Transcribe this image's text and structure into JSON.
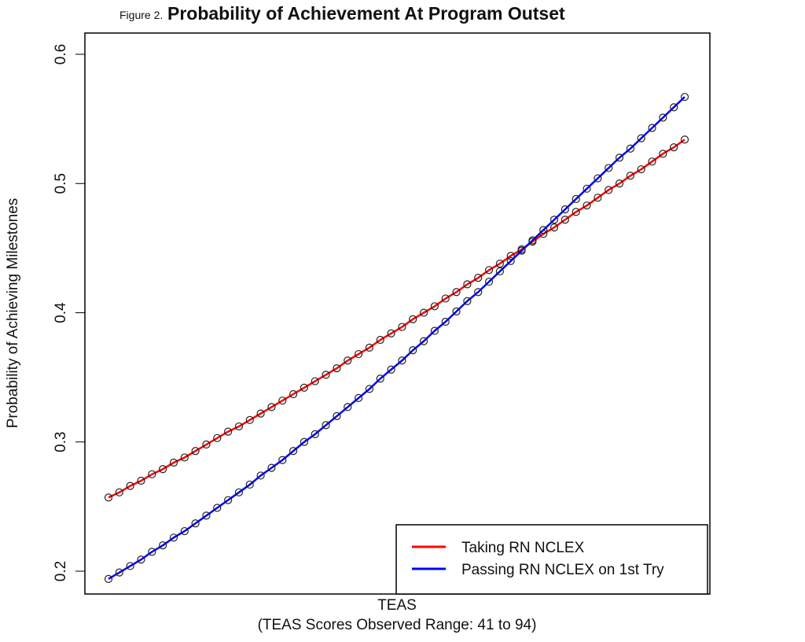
{
  "chart_data": {
    "type": "line",
    "figure_label": "Figure 2.",
    "title": "Probability of Achievement At Program Outset",
    "xlabel": "TEAS",
    "xlabel_sub": "(TEAS Scores Observed Range: 41 to 94)",
    "ylabel": "Probability of Achieving Milestones",
    "ylim": [
      0.18,
      0.62
    ],
    "yticks": [
      "0.2",
      "0.3",
      "0.4",
      "0.5",
      "0.6"
    ],
    "ytick_values": [
      0.2,
      0.3,
      0.4,
      0.5,
      0.6
    ],
    "x_range": [
      41,
      94
    ],
    "legend_position": "bottom-right",
    "markers": "open circles",
    "series": [
      {
        "name": "Taking RN NCLEX",
        "color": "#ff0000",
        "values": [
          0.257,
          0.261,
          0.266,
          0.27,
          0.275,
          0.279,
          0.284,
          0.288,
          0.293,
          0.298,
          0.303,
          0.308,
          0.312,
          0.317,
          0.322,
          0.327,
          0.332,
          0.337,
          0.342,
          0.347,
          0.352,
          0.357,
          0.363,
          0.368,
          0.373,
          0.379,
          0.384,
          0.389,
          0.395,
          0.4,
          0.405,
          0.411,
          0.416,
          0.422,
          0.427,
          0.433,
          0.438,
          0.444,
          0.449,
          0.455,
          0.461,
          0.466,
          0.472,
          0.478,
          0.483,
          0.489,
          0.495,
          0.5,
          0.506,
          0.511,
          0.517,
          0.523,
          0.528,
          0.534
        ]
      },
      {
        "name": "Passing RN NCLEX on 1st Try",
        "color": "#0000ff",
        "values": [
          0.194,
          0.199,
          0.204,
          0.209,
          0.215,
          0.22,
          0.226,
          0.231,
          0.237,
          0.243,
          0.249,
          0.255,
          0.261,
          0.267,
          0.274,
          0.28,
          0.286,
          0.293,
          0.3,
          0.306,
          0.313,
          0.32,
          0.327,
          0.334,
          0.341,
          0.349,
          0.356,
          0.363,
          0.371,
          0.378,
          0.386,
          0.393,
          0.401,
          0.409,
          0.416,
          0.424,
          0.432,
          0.44,
          0.448,
          0.456,
          0.464,
          0.472,
          0.48,
          0.488,
          0.496,
          0.504,
          0.512,
          0.52,
          0.527,
          0.535,
          0.543,
          0.551,
          0.559,
          0.567
        ]
      }
    ]
  }
}
